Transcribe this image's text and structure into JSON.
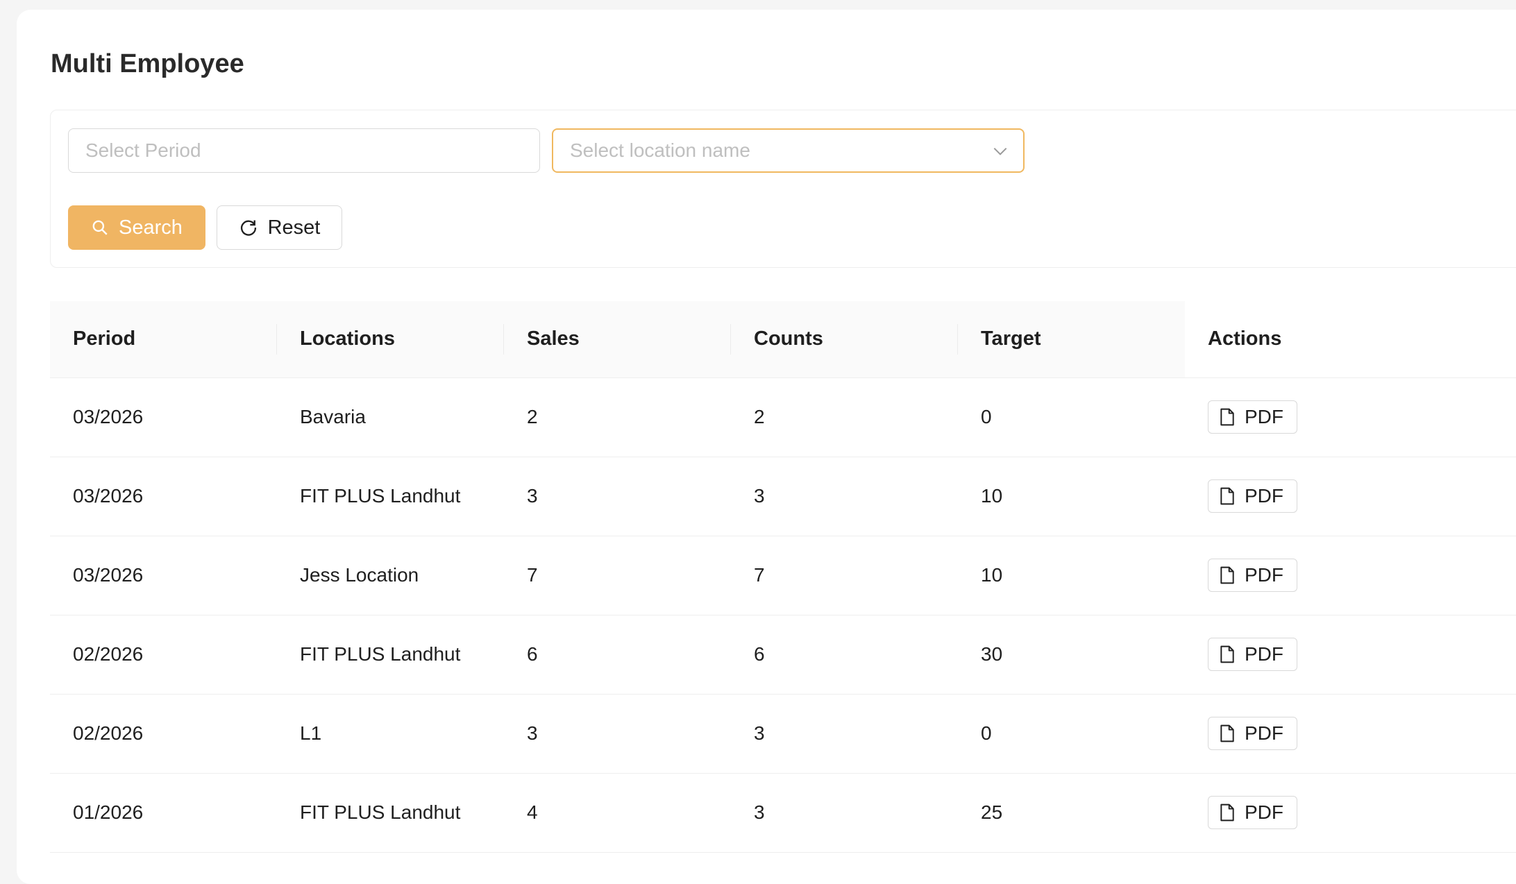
{
  "page": {
    "title": "Multi Employee"
  },
  "filters": {
    "period_placeholder": "Select Period",
    "location_placeholder": "Select location name",
    "search_label": "Search",
    "reset_label": "Reset"
  },
  "table": {
    "columns": [
      "Period",
      "Locations",
      "Sales",
      "Counts",
      "Target",
      "Actions"
    ],
    "action_label": "PDF",
    "rows": [
      {
        "period": "03/2026",
        "location": "Bavaria",
        "sales": "2",
        "counts": "2",
        "target": "0"
      },
      {
        "period": "03/2026",
        "location": "FIT PLUS Landhut",
        "sales": "3",
        "counts": "3",
        "target": "10"
      },
      {
        "period": "03/2026",
        "location": "Jess Location",
        "sales": "7",
        "counts": "7",
        "target": "10"
      },
      {
        "period": "02/2026",
        "location": "FIT PLUS Landhut",
        "sales": "6",
        "counts": "6",
        "target": "30"
      },
      {
        "period": "02/2026",
        "location": "L1",
        "sales": "3",
        "counts": "3",
        "target": "0"
      },
      {
        "period": "01/2026",
        "location": "FIT PLUS Landhut",
        "sales": "4",
        "counts": "3",
        "target": "25"
      }
    ]
  },
  "colors": {
    "accent": "#f0b563",
    "select_border": "#f0b860",
    "header_bg": "#fafafa"
  },
  "icons": {
    "search": "search-icon",
    "reset": "reload-icon",
    "dropdown": "chevron-down-icon",
    "pdf": "file-icon"
  }
}
